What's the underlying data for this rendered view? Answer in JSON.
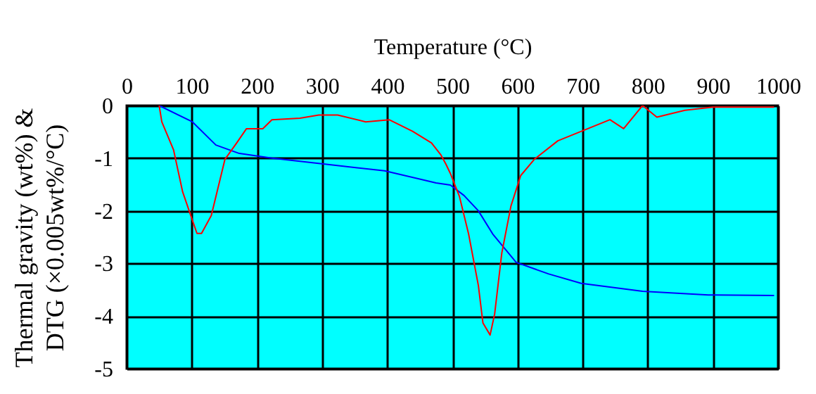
{
  "chart_data": {
    "type": "line",
    "xlabel": "Temperature (°C)",
    "ylabel": "Thermal gravity (wt%) & DTG (×0.005wt%/°C)",
    "xlim": [
      0,
      1000
    ],
    "xticks": [
      0,
      100,
      200,
      300,
      400,
      500,
      600,
      700,
      800,
      900,
      1000
    ],
    "ylim": [
      -5,
      0
    ],
    "yticks": [
      -5,
      -4,
      -3,
      -2,
      -1,
      0
    ],
    "grid": true,
    "legend": false,
    "marker": "none",
    "line_style": "solid",
    "series": [
      {
        "color": "#0000ff",
        "x": [
          50,
          101,
          137,
          173,
          223,
          302,
          396,
          475,
          497,
          518,
          540,
          562,
          598,
          648,
          698,
          792,
          893,
          994
        ],
        "values": [
          0,
          -0.31,
          -0.75,
          -0.91,
          -1.0,
          -1.11,
          -1.24,
          -1.47,
          -1.51,
          -1.71,
          -2.0,
          -2.44,
          -2.98,
          -3.2,
          -3.38,
          -3.53,
          -3.6,
          -3.61
        ]
      },
      {
        "color": "#ff0000",
        "x": [
          50,
          54,
          72,
          86,
          101,
          108,
          115,
          130,
          151,
          169,
          184,
          209,
          223,
          266,
          295,
          324,
          367,
          403,
          439,
          468,
          482,
          490,
          497,
          511,
          525,
          540,
          547,
          558,
          565,
          576,
          590,
          605,
          626,
          662,
          698,
          742,
          763,
          792,
          814,
          857,
          900,
          994
        ],
        "values": [
          0,
          -0.31,
          -0.84,
          -1.64,
          -2.18,
          -2.43,
          -2.43,
          -2.09,
          -1.02,
          -0.71,
          -0.44,
          -0.44,
          -0.27,
          -0.24,
          -0.18,
          -0.18,
          -0.31,
          -0.27,
          -0.49,
          -0.71,
          -0.93,
          -1.11,
          -1.29,
          -1.73,
          -2.44,
          -3.42,
          -4.13,
          -4.36,
          -3.96,
          -2.8,
          -1.91,
          -1.33,
          -1.02,
          -0.67,
          -0.49,
          -0.27,
          -0.44,
          0,
          -0.22,
          -0.09,
          -0.03,
          -0.03
        ]
      }
    ]
  }
}
